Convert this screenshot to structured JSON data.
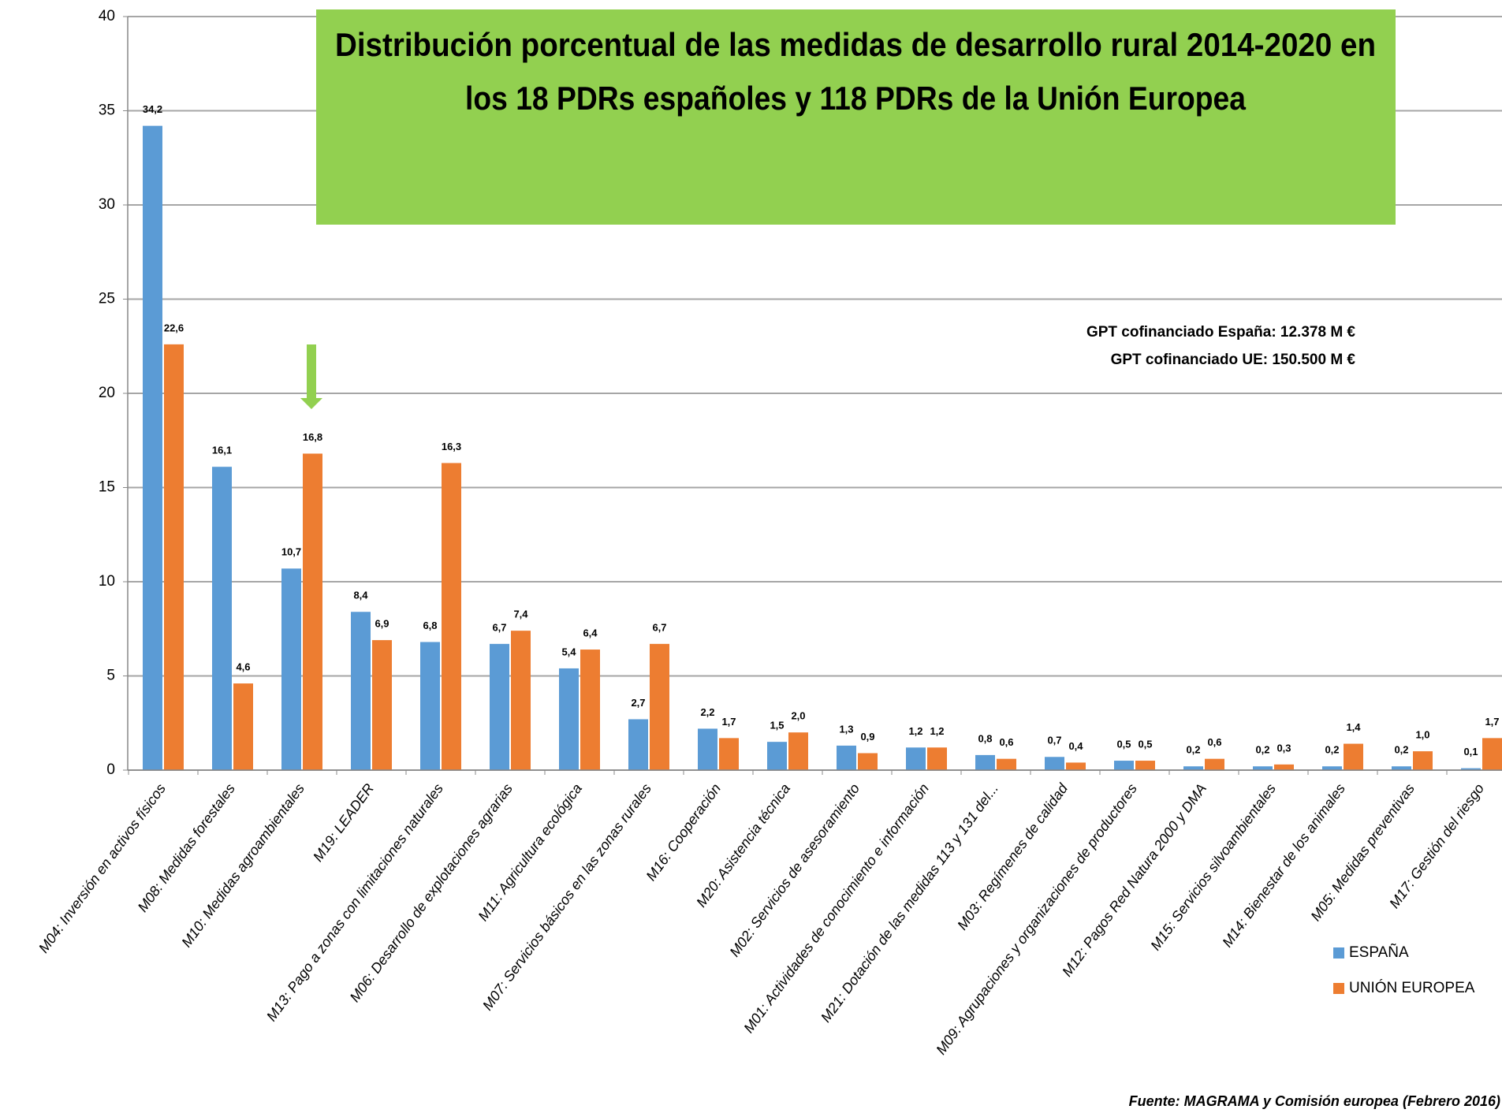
{
  "chart_data": {
    "type": "bar",
    "title": [
      "Distribución porcentual de las medidas de desarrollo rural 2014-2020 en",
      "los 18 PDRs españoles y 118 PDRs de la Unión Europea"
    ],
    "annotations": [
      "GPT cofinanciado España: 12.378 M €",
      "GPT cofinanciado UE: 150.500 M €"
    ],
    "source": "Fuente: MAGRAMA y Comisión europea (Febrero 2016)",
    "categories": [
      "M04: Inversión en activos físicos",
      "M08: Medidas forestales",
      "M10: Medidas agroambientales",
      "M19: LEADER",
      "M13: Pago a zonas con limitaciones naturales",
      "M06: Desarrollo de explotaciones agrarias",
      "M11: Agricultura ecológica",
      "M07: Servicios básicos en las zonas rurales",
      "M16: Cooperación",
      "M20: Asistencia técnica",
      "M02: Servicios de asesoramiento",
      "M01: Actividades de conocimiento e información",
      "M21: Dotación de las medidas 113 y 131 del...",
      "M03: Regímenes de calidad",
      "M09: Agrupaciones y organizaciones de productores",
      "M12: Pagos Red Natura 2000 y DMA",
      "M15: Servicios silvoambientales",
      "M14: Bienestar de los animales",
      "M05: Medidas preventivas",
      "M17: Gestión del riesgo"
    ],
    "series": [
      {
        "name": "ESPAÑA",
        "color": "#5b9bd5",
        "values": [
          34.2,
          16.1,
          10.7,
          8.4,
          6.8,
          6.7,
          5.4,
          2.7,
          2.2,
          1.5,
          1.3,
          1.2,
          0.8,
          0.7,
          0.5,
          0.2,
          0.2,
          0.2,
          0.2,
          0.1
        ],
        "value_labels": [
          "34,2",
          "16,1",
          "10,7",
          "8,4",
          "6,8",
          "6,7",
          "5,4",
          "2,7",
          "2,2",
          "1,5",
          "1,3",
          "1,2",
          "0,8",
          "0,7",
          "0,5",
          "0,2",
          "0,2",
          "0,2",
          "0,2",
          "0,1"
        ]
      },
      {
        "name": "UNIÓN EUROPEA",
        "color": "#ed7d31",
        "values": [
          22.6,
          4.6,
          16.8,
          6.9,
          16.3,
          7.4,
          6.4,
          6.7,
          1.7,
          2.0,
          0.9,
          1.2,
          0.6,
          0.4,
          0.5,
          0.6,
          0.3,
          1.4,
          1.0,
          1.7
        ],
        "value_labels": [
          "22,6",
          "4,6",
          "16,8",
          "6,9",
          "16,3",
          "7,4",
          "6,4",
          "6,7",
          "1,7",
          "2,0",
          "0,9",
          "1,2",
          "0,6",
          "0,4",
          "0,5",
          "0,6",
          "0,3",
          "1,4",
          "1,0",
          "1,7"
        ]
      }
    ],
    "ylim": [
      0,
      40
    ],
    "yticks": [
      0,
      5,
      10,
      15,
      20,
      25,
      30,
      35,
      40
    ],
    "grid": true
  }
}
